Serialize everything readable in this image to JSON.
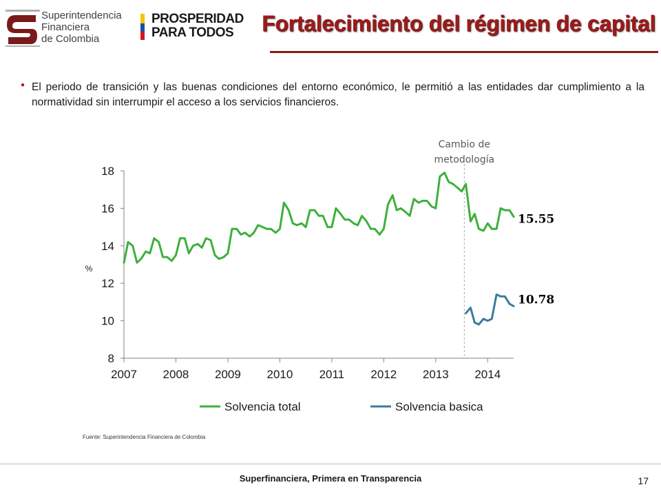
{
  "header": {
    "org_logo_lines": [
      "Superintendencia",
      "Financiera",
      "de Colombia"
    ],
    "campaign_logo_lines": [
      "PROSPERIDAD",
      "PARA TODOS"
    ],
    "title": "Fortalecimiento del régimen de capital"
  },
  "colors": {
    "title": "#9b1c1c",
    "bullet": "#c00000",
    "series_total": "#3daf3c",
    "series_basica": "#3b7aa0"
  },
  "bullet_text": "El periodo de transición y las buenas condiciones del entorno económico, le permitió a las entidades dar cumplimiento a la normatividad sin interrumpir el acceso a los servicios financieros.",
  "chart_data": {
    "type": "line",
    "title": "",
    "xlabel": "",
    "ylabel": "%",
    "ylim": [
      8,
      18
    ],
    "yticks": [
      8,
      10,
      12,
      14,
      16,
      18
    ],
    "xlim": [
      2007,
      2014.5
    ],
    "xticks": [
      2007,
      2008,
      2009,
      2010,
      2011,
      2012,
      2013,
      2014
    ],
    "grid": false,
    "legend": "bottom",
    "annotation": {
      "lines": [
        "Cambio de",
        "metodología"
      ],
      "x": 2013.55
    },
    "series": [
      {
        "name": "Solvencia total",
        "color": "#3daf3c",
        "end_label": "15.55",
        "x": [
          2007.0,
          2007.08,
          2007.17,
          2007.25,
          2007.33,
          2007.42,
          2007.5,
          2007.58,
          2007.67,
          2007.75,
          2007.83,
          2007.92,
          2008.0,
          2008.08,
          2008.17,
          2008.25,
          2008.33,
          2008.42,
          2008.5,
          2008.58,
          2008.67,
          2008.75,
          2008.83,
          2008.92,
          2009.0,
          2009.08,
          2009.17,
          2009.25,
          2009.33,
          2009.42,
          2009.5,
          2009.58,
          2009.67,
          2009.75,
          2009.83,
          2009.92,
          2010.0,
          2010.08,
          2010.17,
          2010.25,
          2010.33,
          2010.42,
          2010.5,
          2010.58,
          2010.67,
          2010.75,
          2010.83,
          2010.92,
          2011.0,
          2011.08,
          2011.17,
          2011.25,
          2011.33,
          2011.42,
          2011.5,
          2011.58,
          2011.67,
          2011.75,
          2011.83,
          2011.92,
          2012.0,
          2012.08,
          2012.17,
          2012.25,
          2012.33,
          2012.42,
          2012.5,
          2012.58,
          2012.67,
          2012.75,
          2012.83,
          2012.92,
          2013.0,
          2013.08,
          2013.17,
          2013.25,
          2013.33,
          2013.42,
          2013.5,
          2013.58,
          2013.67,
          2013.75,
          2013.83,
          2013.92,
          2014.0,
          2014.08,
          2014.17,
          2014.25,
          2014.33,
          2014.42,
          2014.5
        ],
        "values": [
          13.1,
          14.2,
          14.0,
          13.1,
          13.3,
          13.7,
          13.6,
          14.4,
          14.2,
          13.4,
          13.4,
          13.2,
          13.5,
          14.4,
          14.4,
          13.6,
          14.0,
          14.1,
          13.9,
          14.4,
          14.3,
          13.5,
          13.3,
          13.4,
          13.6,
          14.9,
          14.9,
          14.6,
          14.7,
          14.5,
          14.7,
          15.1,
          15.0,
          14.9,
          14.9,
          14.7,
          14.9,
          16.3,
          15.9,
          15.2,
          15.1,
          15.2,
          15.0,
          15.9,
          15.9,
          15.6,
          15.6,
          15.0,
          15.0,
          16.0,
          15.7,
          15.4,
          15.4,
          15.2,
          15.1,
          15.6,
          15.3,
          14.9,
          14.9,
          14.6,
          14.9,
          16.2,
          16.7,
          15.9,
          16.0,
          15.8,
          15.6,
          16.5,
          16.3,
          16.4,
          16.4,
          16.1,
          16.0,
          17.7,
          17.9,
          17.4,
          17.3,
          17.1,
          16.9,
          17.3,
          15.3,
          15.7,
          14.9,
          14.8,
          15.2,
          14.9,
          14.9,
          16.0,
          15.9,
          15.9,
          15.55
        ]
      },
      {
        "name": "Solvencia basica",
        "color": "#3b7aa0",
        "end_label": "10.78",
        "x": [
          2013.58,
          2013.67,
          2013.75,
          2013.83,
          2013.92,
          2014.0,
          2014.08,
          2014.17,
          2014.25,
          2014.33,
          2014.42,
          2014.5
        ],
        "values": [
          10.4,
          10.7,
          9.9,
          9.8,
          10.1,
          10.0,
          10.1,
          11.4,
          11.3,
          11.3,
          10.9,
          10.78
        ]
      }
    ]
  },
  "source": "Fuente: Superintendencia Financiera de Colombia",
  "footer": {
    "text": "Superfinanciera, Primera en Transparencia",
    "page": "17"
  }
}
